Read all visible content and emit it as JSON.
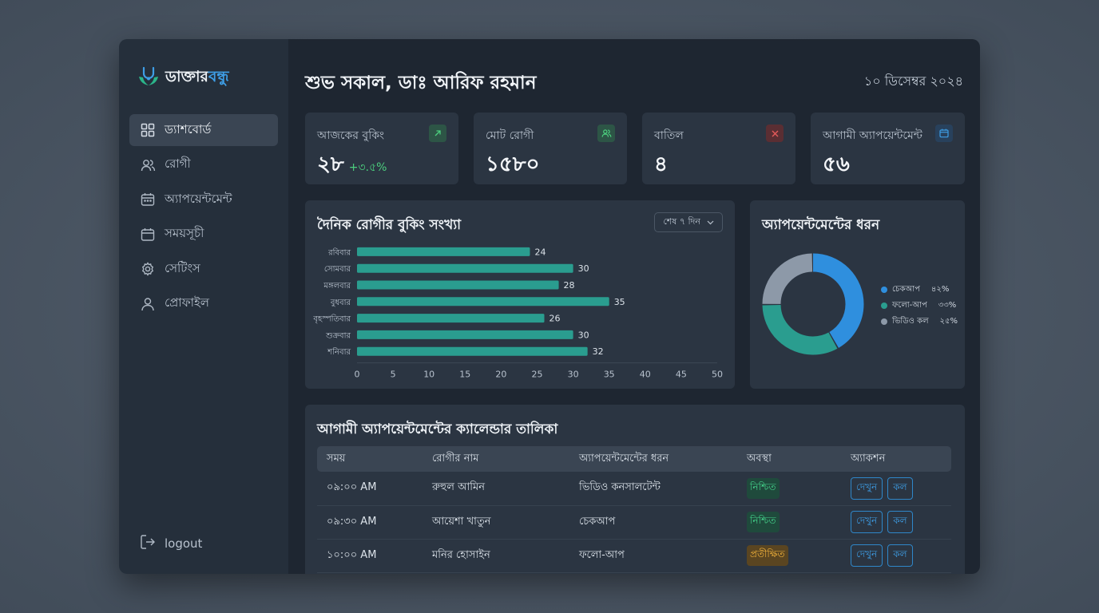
{
  "brand": {
    "name_part1": "ডাক্তার",
    "name_part2": "বন্ধু",
    "accent_color": "#3e9ee6"
  },
  "sidebar": {
    "items": [
      {
        "label": "ড্যাশবোর্ড",
        "icon": "grid-icon",
        "active": true
      },
      {
        "label": "রোগী",
        "icon": "users-icon"
      },
      {
        "label": "অ্যাপয়েন্টমেন্ট",
        "icon": "calendar-clock-icon"
      },
      {
        "label": "সময়সূচী",
        "icon": "calendar-icon"
      },
      {
        "label": "সেটিংস",
        "icon": "gear-icon"
      },
      {
        "label": "প্রোফাইল",
        "icon": "user-icon"
      }
    ],
    "logout_label": "logout"
  },
  "header": {
    "greeting": "শুভ সকাল, ডাঃ আরিফ রহমান",
    "date": "১০ ডিসেম্বর ২০২৪"
  },
  "stats": [
    {
      "title": "আজকের বুকিং",
      "value": "২৮",
      "delta": "+৩.৫%",
      "icon": "arrow-up-right-icon",
      "icon_color": "#4ccf7e",
      "icon_bg": "#2d5546"
    },
    {
      "title": "মোট রোগী",
      "value": "১৫৮০",
      "icon": "users-icon",
      "icon_color": "#4ccf7e",
      "icon_bg": "#2d5546"
    },
    {
      "title": "বাতিল",
      "value": "৪",
      "icon": "close-icon",
      "icon_color": "#e55a5a",
      "icon_bg": "#5a2e33"
    },
    {
      "title": "আগামী অ্যাপয়েন্টমেন্ট",
      "value": "৫৬",
      "icon": "calendar-icon",
      "icon_color": "#3e9ee6",
      "icon_bg": "#28415c"
    }
  ],
  "bookings_panel": {
    "title": "দৈনিক রোগীর বুকিং সংখ্যা",
    "filter_label": "শেষ ৭ দিন"
  },
  "chart_data": [
    {
      "type": "bar",
      "orientation": "horizontal",
      "title": "দৈনিক রোগীর বুকিং সংখ্যা",
      "categories": [
        "রবিবার",
        "সোমবার",
        "মঙ্গলবার",
        "বুধবার",
        "বৃহস্পতিবার",
        "শুক্রবার",
        "শনিবার"
      ],
      "values": [
        24,
        30,
        28,
        35,
        26,
        30,
        32
      ],
      "xlim": [
        0,
        50
      ],
      "xticks": [
        0,
        5,
        10,
        15,
        20,
        25,
        30,
        35,
        40,
        45,
        50
      ],
      "color": "#2a9d8f",
      "grid": false
    },
    {
      "type": "pie",
      "donut": true,
      "title": "অ্যাপয়েন্টমেন্টের ধরন",
      "labels": [
        "চেকআপ",
        "ফলো-আপ",
        "ভিডিও কল"
      ],
      "values": [
        42,
        33,
        25
      ],
      "value_labels": [
        "৪২%",
        "৩৩%",
        "২৫%"
      ],
      "colors": [
        "#2f8fde",
        "#2a9d8f",
        "#8d99a8"
      ],
      "legend": "right"
    }
  ],
  "types_panel": {
    "title": "অ্যাপয়েন্টমেন্টের ধরন"
  },
  "appointments": {
    "title": "আগামী অ্যাপয়েন্টমেন্টের ক্যালেন্ডার তালিকা",
    "columns": [
      "সময়",
      "রোগীর নাম",
      "অ্যাপয়েন্টমেন্টের ধরন",
      "অবস্থা",
      "অ্যাকশন"
    ],
    "rows": [
      {
        "time": "০৯:০০ AM",
        "name": "রুহুল আমিন",
        "type": "ভিডিও কনসালটেন্ট",
        "status": "নিশ্চিত",
        "status_kind": "ok"
      },
      {
        "time": "০৯:৩০ AM",
        "name": "আয়েশা খাতুন",
        "type": "চেকআপ",
        "status": "নিশ্চিত",
        "status_kind": "ok"
      },
      {
        "time": "১০:০০ AM",
        "name": "মনির হোসাইন",
        "type": "ফলো-আপ",
        "status": "প্রতীক্ষিত",
        "status_kind": "pending"
      }
    ],
    "action_view": "দেখুন",
    "action_call": "কল"
  }
}
